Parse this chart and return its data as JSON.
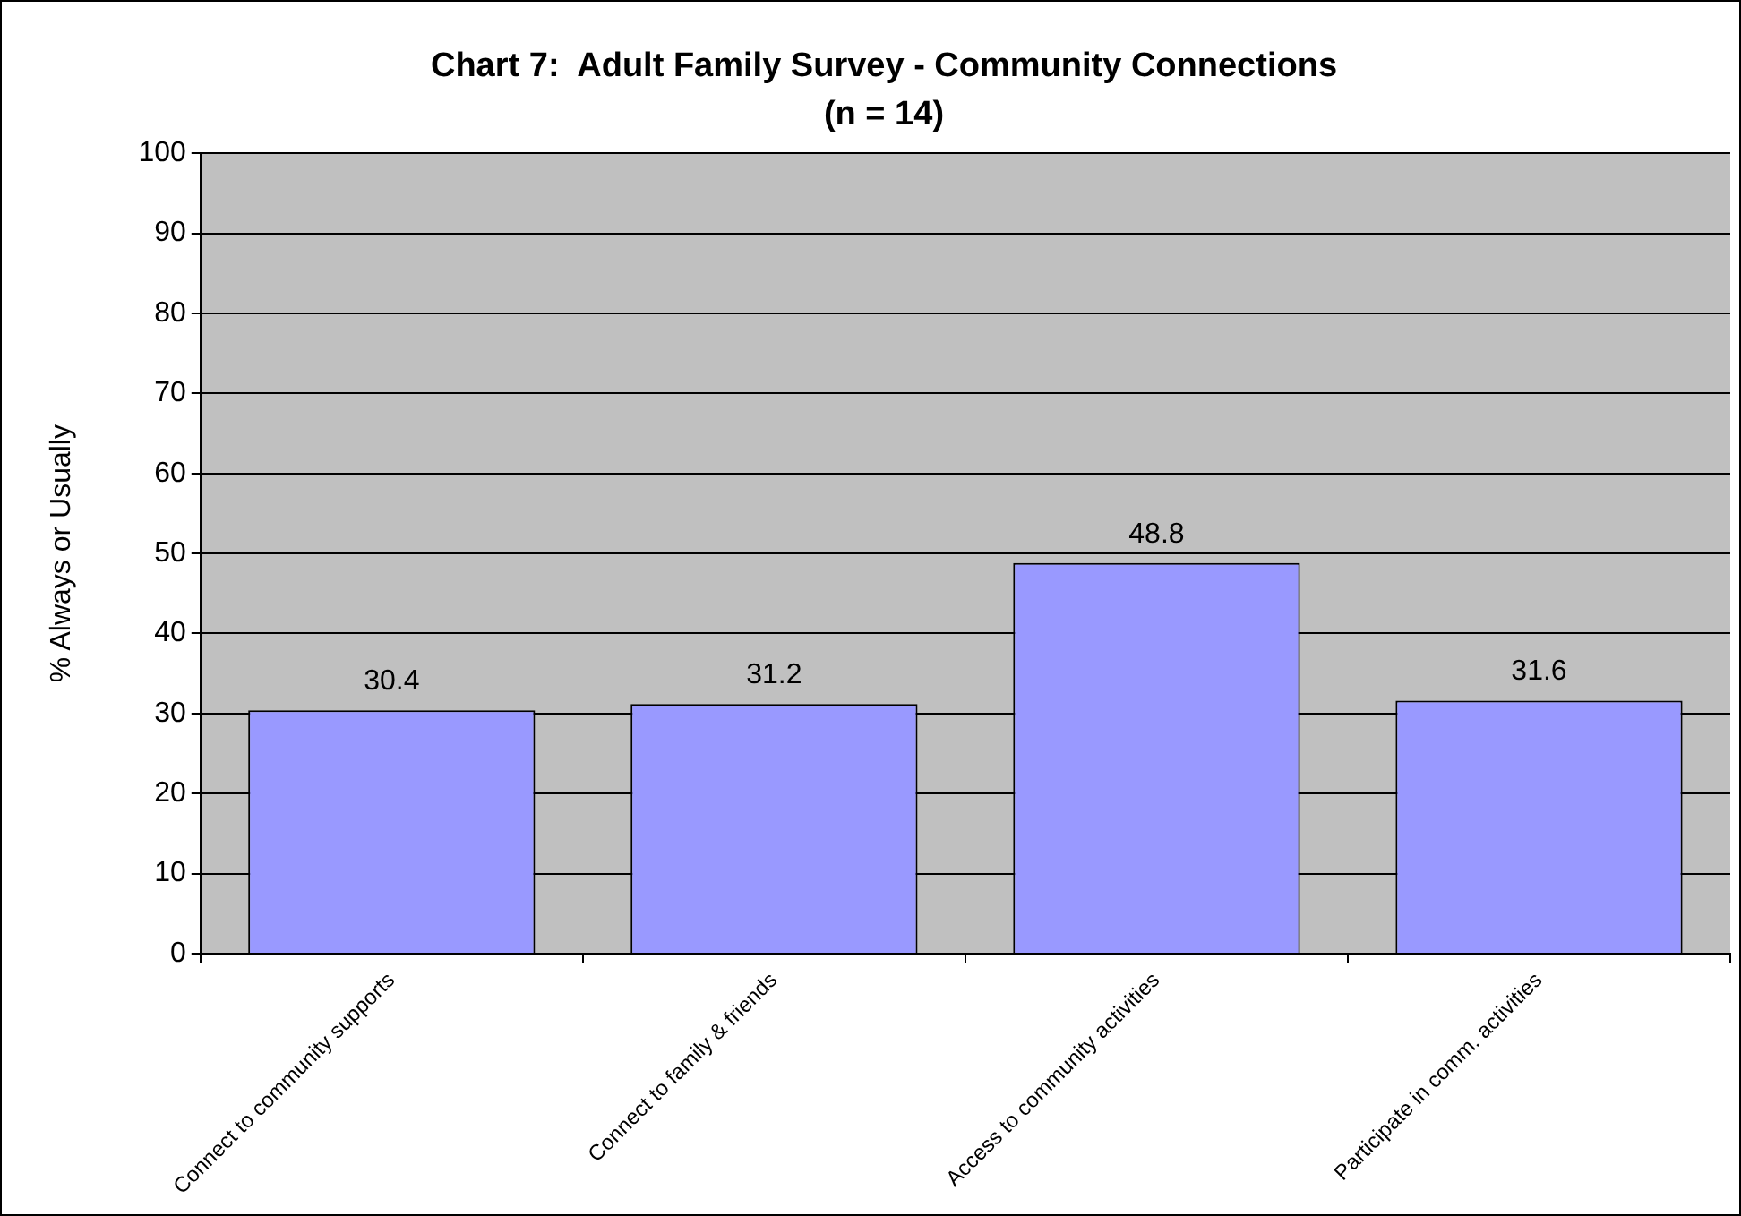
{
  "chart_data": {
    "type": "bar",
    "title": "Chart 7:  Adult Family Survey - Community Connections",
    "subtitle": "(n = 14)",
    "ylabel": "% Always or Usually",
    "categories": [
      "Connect to community supports",
      "Connect to family & friends",
      "Access to community activities",
      "Participate in comm. activities"
    ],
    "values": [
      30.4,
      31.2,
      48.8,
      31.6
    ],
    "color": "#9999ff",
    "ylim": [
      0,
      100
    ],
    "yticks": [
      0,
      10,
      20,
      30,
      40,
      50,
      60,
      70,
      80,
      90,
      100
    ],
    "grid": "y",
    "legend": false,
    "data_labels": true
  }
}
